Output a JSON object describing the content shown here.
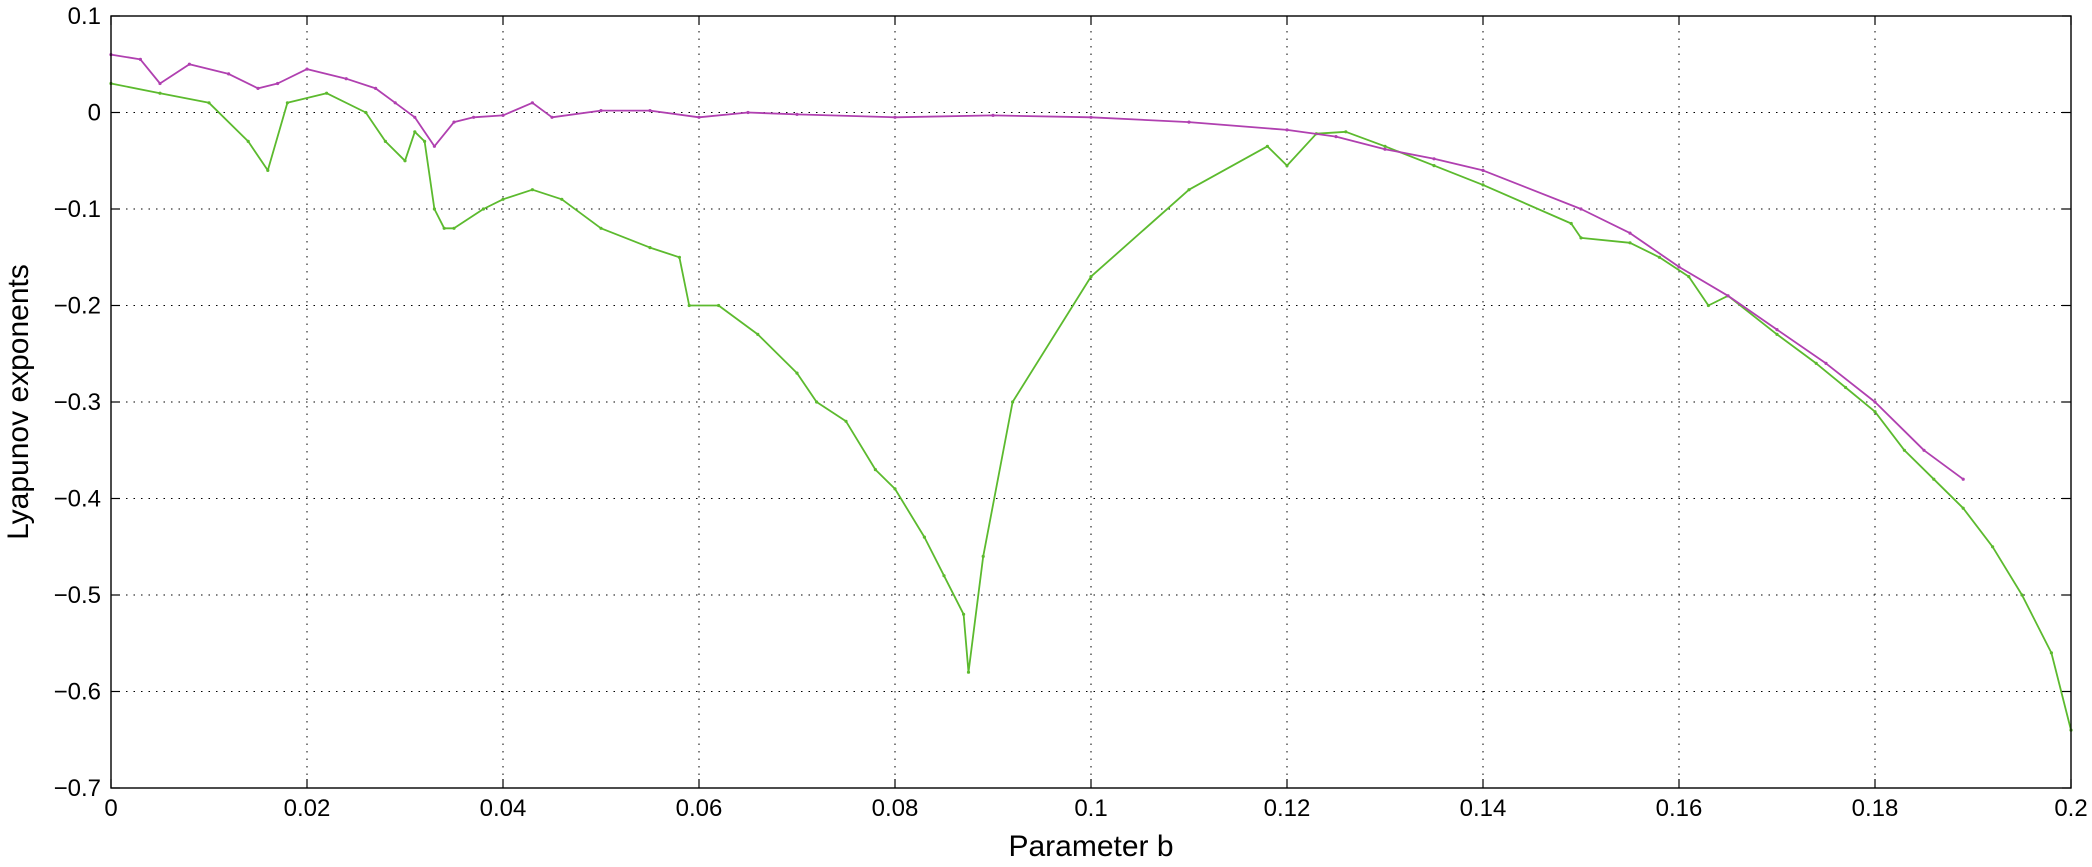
{
  "chart_data": {
    "type": "scatter",
    "xlabel": "Parameter b",
    "ylabel": "Lyapunov exponents",
    "xlim": [
      0,
      0.2
    ],
    "ylim": [
      -0.7,
      0.1
    ],
    "grid": true,
    "grid_style": "dotted",
    "x_ticks": [
      0,
      0.02,
      0.04,
      0.06,
      0.08,
      0.1,
      0.12,
      0.14,
      0.16,
      0.18,
      0.2
    ],
    "x_tick_labels": [
      "0",
      "0.02",
      "0.04",
      "0.06",
      "0.08",
      "0.1",
      "0.12",
      "0.14",
      "0.16",
      "0.18",
      "0.2"
    ],
    "y_ticks": [
      0.1,
      0,
      -0.1,
      -0.2,
      -0.3,
      -0.4,
      -0.5,
      -0.6,
      -0.7
    ],
    "y_tick_labels": [
      "0.1",
      "0",
      "−0.1",
      "−0.2",
      "−0.3",
      "−0.4",
      "−0.5",
      "−0.6",
      "−0.7"
    ],
    "series": [
      {
        "color": "#b040b0",
        "x": [
          0,
          0.003,
          0.005,
          0.008,
          0.012,
          0.015,
          0.017,
          0.02,
          0.024,
          0.027,
          0.029,
          0.031,
          0.033,
          0.035,
          0.037,
          0.04,
          0.043,
          0.045,
          0.05,
          0.055,
          0.06,
          0.065,
          0.07,
          0.08,
          0.09,
          0.1,
          0.11,
          0.12,
          0.125,
          0.13,
          0.135,
          0.14,
          0.15,
          0.155,
          0.16,
          0.165,
          0.17,
          0.175,
          0.18,
          0.185,
          0.189
        ],
        "y": [
          0.06,
          0.055,
          0.03,
          0.05,
          0.04,
          0.025,
          0.03,
          0.045,
          0.035,
          0.025,
          0.01,
          -0.005,
          -0.035,
          -0.01,
          -0.005,
          -0.003,
          0.01,
          -0.005,
          0.002,
          0.002,
          -0.005,
          0.0,
          -0.002,
          -0.005,
          -0.003,
          -0.005,
          -0.01,
          -0.018,
          -0.025,
          -0.038,
          -0.048,
          -0.06,
          -0.1,
          -0.125,
          -0.16,
          -0.19,
          -0.225,
          -0.26,
          -0.3,
          -0.35,
          -0.38
        ]
      },
      {
        "color": "#5cba2e",
        "x": [
          0,
          0.005,
          0.01,
          0.014,
          0.016,
          0.018,
          0.022,
          0.026,
          0.028,
          0.03,
          0.031,
          0.032,
          0.033,
          0.034,
          0.035,
          0.038,
          0.04,
          0.043,
          0.046,
          0.05,
          0.055,
          0.058,
          0.059,
          0.062,
          0.066,
          0.07,
          0.072,
          0.075,
          0.078,
          0.08,
          0.083,
          0.085,
          0.087,
          0.0875,
          0.089,
          0.092,
          0.1,
          0.11,
          0.118,
          0.12,
          0.123,
          0.126,
          0.13,
          0.135,
          0.14,
          0.149,
          0.15,
          0.155,
          0.158,
          0.161,
          0.163,
          0.165,
          0.17,
          0.174,
          0.177,
          0.18,
          0.183,
          0.186,
          0.189,
          0.192,
          0.195,
          0.198,
          0.2
        ],
        "y": [
          0.03,
          0.02,
          0.01,
          -0.03,
          -0.06,
          0.01,
          0.02,
          0.0,
          -0.03,
          -0.05,
          -0.02,
          -0.03,
          -0.1,
          -0.12,
          -0.12,
          -0.1,
          -0.09,
          -0.08,
          -0.09,
          -0.12,
          -0.14,
          -0.15,
          -0.2,
          -0.2,
          -0.23,
          -0.27,
          -0.3,
          -0.32,
          -0.37,
          -0.39,
          -0.44,
          -0.48,
          -0.52,
          -0.58,
          -0.46,
          -0.3,
          -0.17,
          -0.08,
          -0.035,
          -0.055,
          -0.022,
          -0.02,
          -0.035,
          -0.055,
          -0.075,
          -0.115,
          -0.13,
          -0.135,
          -0.15,
          -0.17,
          -0.2,
          -0.19,
          -0.23,
          -0.26,
          -0.285,
          -0.31,
          -0.35,
          -0.38,
          -0.41,
          -0.45,
          -0.5,
          -0.56,
          -0.64
        ]
      }
    ]
  }
}
